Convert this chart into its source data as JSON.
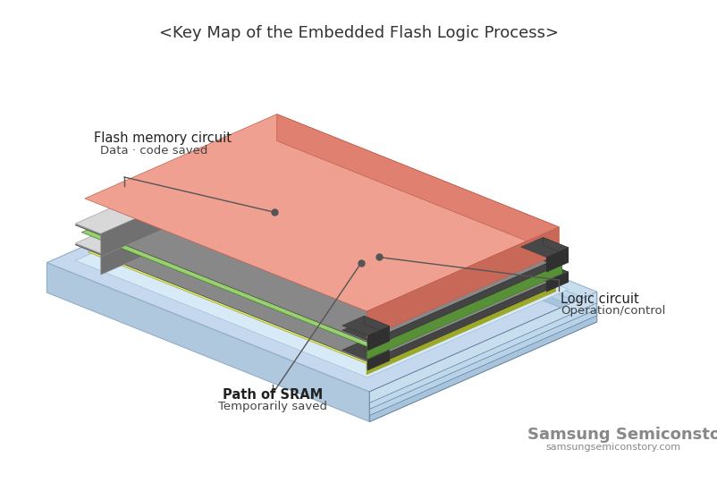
{
  "title": "<Key Map of the Embedded Flash Logic Process>",
  "title_fontsize": 13,
  "title_color": "#333333",
  "background_color": "#ffffff",
  "samsung_text": "Samsung Semiconstory",
  "samsung_url": "samsungsemiconstory.com",
  "samsung_text_color": "#888888",
  "labels": {
    "flash": "Flash memory circuit",
    "flash_sub": "Data · code saved",
    "logic": "Logic circuit",
    "logic_sub": "Operation/control",
    "sram": "Path of SRAM",
    "sram_sub": "Temporarily saved"
  },
  "colors": {
    "base_top": "#c5d8ed",
    "base_front": "#a0b8d0",
    "base_right": "#7090a8",
    "base_back_left": "#b0c8de",
    "platform_top": "#d8eaf8",
    "flash_top": "#f0a090",
    "flash_front": "#e08070",
    "flash_right": "#c86858",
    "flash_back": "#d07868",
    "green_top": "#98d070",
    "green_front": "#78b050",
    "green_right": "#589038",
    "green_back": "#68a040",
    "yellow_top": "#dce870",
    "yellow_front": "#bcc840",
    "yellow_right": "#9ca828",
    "yellow_back": "#ccd850",
    "sep_top": "#888888",
    "sep_front": "#555555",
    "sep_right": "#444444",
    "sep_back": "#666666",
    "metal_light": "#d8d8d8",
    "metal_mid": "#b0b0b0",
    "metal_dark": "#707070",
    "connector_dark": "#484848",
    "connector_light": "#c8c8c8",
    "dot_color": "#555555"
  }
}
